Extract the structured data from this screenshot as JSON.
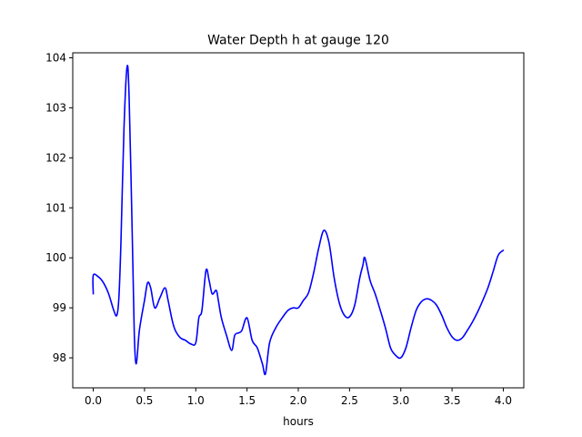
{
  "chart_data": {
    "type": "line",
    "title": "Water Depth h at gauge 120",
    "xlabel": "hours",
    "ylabel": "",
    "xlim": [
      -0.2,
      4.2
    ],
    "ylim": [
      97.4,
      104.1
    ],
    "xticks": [
      0.0,
      0.5,
      1.0,
      1.5,
      2.0,
      2.5,
      3.0,
      3.5,
      4.0
    ],
    "xtick_labels": [
      "0.0",
      "0.5",
      "1.0",
      "1.5",
      "2.0",
      "2.5",
      "3.0",
      "3.5",
      "4.0"
    ],
    "yticks": [
      98,
      99,
      100,
      101,
      102,
      103,
      104
    ],
    "ytick_labels": [
      "98",
      "99",
      "100",
      "101",
      "102",
      "103",
      "104"
    ],
    "grid": false,
    "series": [
      {
        "name": "",
        "color": "#0000ff",
        "x": [
          0.0,
          0.0,
          0.05,
          0.1,
          0.15,
          0.2,
          0.23,
          0.25,
          0.27,
          0.3,
          0.33,
          0.35,
          0.38,
          0.4,
          0.42,
          0.45,
          0.5,
          0.53,
          0.56,
          0.6,
          0.65,
          0.7,
          0.73,
          0.77,
          0.8,
          0.85,
          0.9,
          0.95,
          1.0,
          1.03,
          1.06,
          1.1,
          1.13,
          1.16,
          1.2,
          1.22,
          1.25,
          1.3,
          1.35,
          1.38,
          1.42,
          1.45,
          1.5,
          1.55,
          1.6,
          1.65,
          1.68,
          1.72,
          1.78,
          1.85,
          1.9,
          1.95,
          2.0,
          2.05,
          2.1,
          2.15,
          2.2,
          2.25,
          2.3,
          2.35,
          2.4,
          2.45,
          2.5,
          2.55,
          2.6,
          2.63,
          2.65,
          2.7,
          2.75,
          2.8,
          2.85,
          2.9,
          2.95,
          3.0,
          3.05,
          3.1,
          3.15,
          3.2,
          3.25,
          3.3,
          3.35,
          3.4,
          3.45,
          3.5,
          3.55,
          3.6,
          3.65,
          3.7,
          3.75,
          3.8,
          3.85,
          3.9,
          3.95,
          4.0
        ],
        "y": [
          99.28,
          99.65,
          99.62,
          99.5,
          99.28,
          98.95,
          98.85,
          99.2,
          100.3,
          102.6,
          103.82,
          103.2,
          100.5,
          98.5,
          97.88,
          98.55,
          99.15,
          99.5,
          99.4,
          99.0,
          99.2,
          99.4,
          99.15,
          98.75,
          98.55,
          98.4,
          98.35,
          98.28,
          98.3,
          98.8,
          98.95,
          99.75,
          99.55,
          99.28,
          99.35,
          99.15,
          98.8,
          98.45,
          98.15,
          98.45,
          98.5,
          98.55,
          98.8,
          98.35,
          98.2,
          97.88,
          97.68,
          98.3,
          98.6,
          98.82,
          98.95,
          99.0,
          99.0,
          99.15,
          99.3,
          99.7,
          100.2,
          100.55,
          100.3,
          99.6,
          99.1,
          98.85,
          98.82,
          99.05,
          99.6,
          99.85,
          100.0,
          99.55,
          99.28,
          98.95,
          98.6,
          98.2,
          98.05,
          98.0,
          98.2,
          98.6,
          98.95,
          99.12,
          99.18,
          99.15,
          99.05,
          98.85,
          98.6,
          98.42,
          98.35,
          98.4,
          98.55,
          98.72,
          98.92,
          99.15,
          99.4,
          99.72,
          100.05,
          100.15
        ]
      }
    ]
  }
}
